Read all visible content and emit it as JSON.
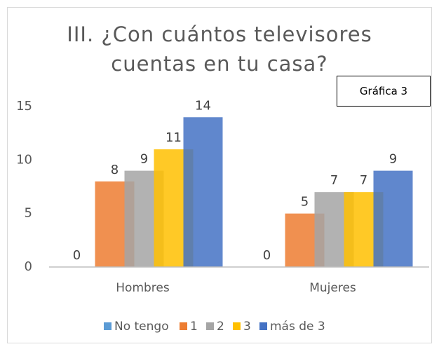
{
  "chart_data": {
    "type": "bar",
    "title": "III. ¿Con cuántos televisores cuentas en tu casa?",
    "annotation": "Gráfica 3",
    "categories": [
      "Hombres",
      "Mujeres"
    ],
    "series": [
      {
        "name": "No tengo",
        "color": "#5b9bd5",
        "values": [
          0,
          0
        ]
      },
      {
        "name": "1",
        "color": "#ed7d31",
        "values": [
          8,
          5
        ]
      },
      {
        "name": "2",
        "color": "#a5a5a5",
        "values": [
          9,
          7
        ]
      },
      {
        "name": "3",
        "color": "#ffc000",
        "values": [
          11,
          7
        ]
      },
      {
        "name": "más de 3",
        "color": "#4472c4",
        "values": [
          14,
          9
        ]
      }
    ],
    "ylim": [
      0,
      15
    ],
    "yticks": [
      0,
      5,
      10,
      15
    ],
    "grid": false,
    "legend": "bottom"
  }
}
